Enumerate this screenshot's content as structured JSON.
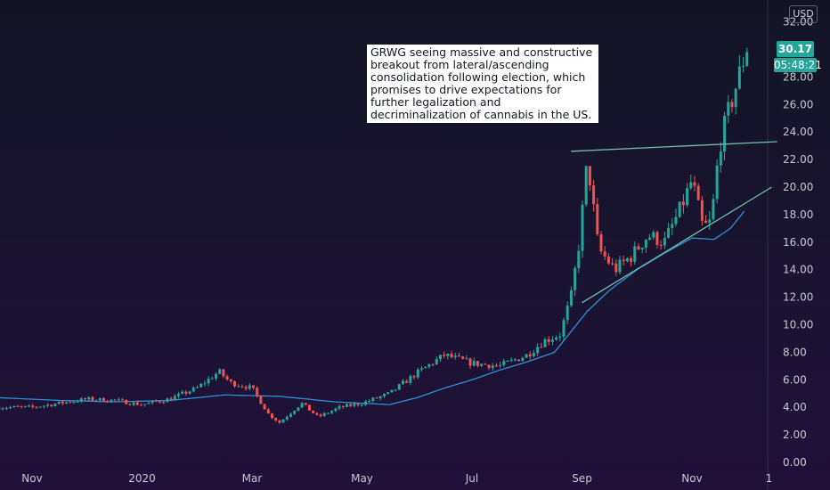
{
  "chart_data": {
    "type": "candlestick",
    "currency": "USD",
    "y_ticks": [
      "32.00",
      "30.00",
      "28.00",
      "26.00",
      "24.00",
      "22.00",
      "20.00",
      "18.00",
      "16.00",
      "14.00",
      "12.00",
      "10.00",
      "8.00",
      "6.00",
      "4.00",
      "2.00",
      "0.00"
    ],
    "ylim": [
      0,
      33
    ],
    "x_ticks": [
      {
        "label": "Nov",
        "month": 0
      },
      {
        "label": "2020",
        "month": 2
      },
      {
        "label": "Mar",
        "month": 4
      },
      {
        "label": "May",
        "month": 6
      },
      {
        "label": "Jul",
        "month": 8
      },
      {
        "label": "Sep",
        "month": 10
      },
      {
        "label": "Nov",
        "month": 12
      },
      {
        "label": "1",
        "month": 13.4
      }
    ],
    "price_path": [
      [
        -0.6,
        4.0
      ],
      [
        0,
        4.0
      ],
      [
        0.5,
        4.3
      ],
      [
        1.0,
        4.6
      ],
      [
        1.5,
        4.5
      ],
      [
        2.0,
        4.2
      ],
      [
        2.5,
        4.6
      ],
      [
        3.0,
        5.4
      ],
      [
        3.2,
        6.0
      ],
      [
        3.4,
        6.6
      ],
      [
        3.6,
        5.8
      ],
      [
        4.0,
        5.4
      ],
      [
        4.3,
        3.5
      ],
      [
        4.5,
        2.9
      ],
      [
        4.9,
        4.3
      ],
      [
        5.2,
        3.3
      ],
      [
        5.6,
        4.0
      ],
      [
        6.0,
        4.3
      ],
      [
        6.5,
        5.0
      ],
      [
        7.0,
        6.5
      ],
      [
        7.5,
        7.8
      ],
      [
        8.0,
        7.2
      ],
      [
        8.5,
        7.0
      ],
      [
        9.0,
        7.8
      ],
      [
        9.3,
        8.8
      ],
      [
        9.6,
        9.3
      ],
      [
        9.8,
        12.0
      ],
      [
        9.95,
        16.0
      ],
      [
        10.1,
        22.0
      ],
      [
        10.3,
        15.5
      ],
      [
        10.6,
        14.0
      ],
      [
        10.9,
        15.0
      ],
      [
        11.2,
        16.5
      ],
      [
        11.5,
        16.0
      ],
      [
        11.8,
        18.5
      ],
      [
        12.0,
        20.5
      ],
      [
        12.2,
        17.0
      ],
      [
        12.35,
        17.5
      ],
      [
        12.5,
        23.0
      ],
      [
        12.7,
        26.0
      ],
      [
        12.85,
        28.0
      ],
      [
        13.0,
        30.2
      ]
    ],
    "sma_path": [
      [
        -0.6,
        4.7
      ],
      [
        0.5,
        4.5
      ],
      [
        1.5,
        4.4
      ],
      [
        2.5,
        4.5
      ],
      [
        3.5,
        4.9
      ],
      [
        4.5,
        4.8
      ],
      [
        5.5,
        4.4
      ],
      [
        6.5,
        4.2
      ],
      [
        7.0,
        4.7
      ],
      [
        7.5,
        5.4
      ],
      [
        8.0,
        6.0
      ],
      [
        8.5,
        6.7
      ],
      [
        9.0,
        7.3
      ],
      [
        9.5,
        8.0
      ],
      [
        9.8,
        9.5
      ],
      [
        10.1,
        11.0
      ],
      [
        10.5,
        12.5
      ],
      [
        11.0,
        14.0
      ],
      [
        11.5,
        15.2
      ],
      [
        12.0,
        16.3
      ],
      [
        12.4,
        16.2
      ],
      [
        12.7,
        17.0
      ],
      [
        13.0,
        18.5
      ]
    ],
    "trendlines": [
      {
        "name": "resistance",
        "from": [
          9.8,
          22.6
        ],
        "to": [
          13.55,
          23.3
        ]
      },
      {
        "name": "support",
        "from": [
          10.0,
          11.6
        ],
        "to": [
          13.45,
          20.0
        ]
      }
    ],
    "last_price": "30.17",
    "countdown": "05:48:21",
    "colors": {
      "up": "#26a69a",
      "down": "#ef5350",
      "sma": "#2f8fd8",
      "trend": "#6fbfaa",
      "tag": "#26a69a"
    },
    "annotation": "GRWG seeing massive and constructive breakout from lateral/ascending consolidation following election, which promises to drive expectations for further legalization and decriminalization of cannabis in the US."
  }
}
